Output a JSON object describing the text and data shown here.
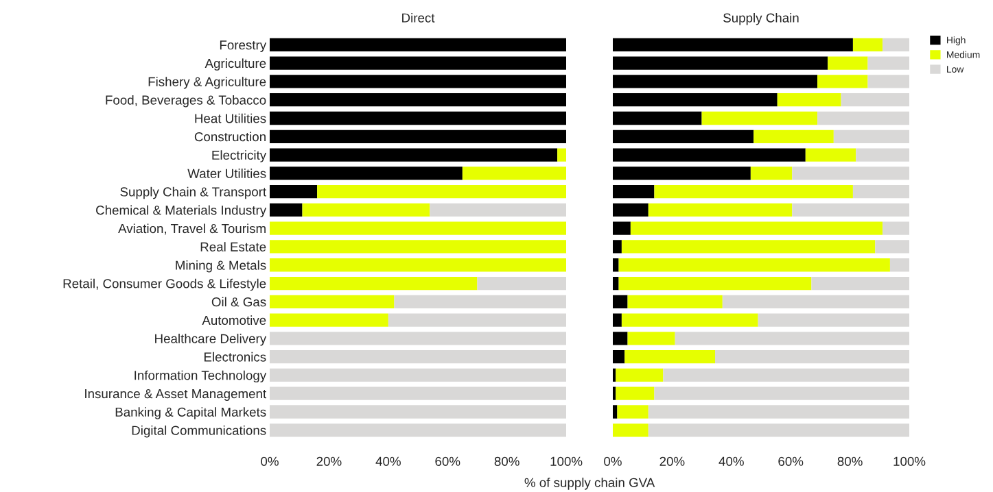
{
  "chart_data": [
    {
      "type": "bar",
      "orientation": "horizontal",
      "stacked": true,
      "title": "Direct",
      "xlabel": "% of supply chain GVA",
      "categories": [
        "Forestry",
        "Agriculture",
        "Fishery & Agriculture",
        "Food, Beverages & Tobacco",
        "Heat Utilities",
        "Construction",
        "Electricity",
        "Water Utilities",
        "Supply Chain & Transport",
        "Chemical & Materials Industry",
        "Aviation, Travel & Tourism",
        "Real Estate",
        "Mining & Metals",
        "Retail, Consumer Goods & Lifestyle",
        "Oil & Gas",
        "Automotive",
        "Healthcare Delivery",
        "Electronics",
        "Information Technology",
        "Insurance & Asset Management",
        "Banking & Capital Markets",
        "Digital Communications"
      ],
      "series": [
        {
          "color": "#000000",
          "values": [
            100,
            100,
            100,
            100,
            100,
            100,
            97,
            65,
            16,
            11,
            0,
            0,
            0,
            0,
            0,
            0,
            0,
            0,
            0,
            0,
            0,
            0
          ]
        },
        {
          "color": "#e6ff00",
          "values": [
            0,
            0,
            0,
            0,
            0,
            0,
            3,
            35,
            84,
            43,
            100,
            100,
            100,
            70,
            42,
            40,
            0,
            0,
            0,
            0,
            0,
            0
          ]
        },
        {
          "color": "#d9d8d7",
          "values": [
            0,
            0,
            0,
            0,
            0,
            0,
            0,
            0,
            0,
            46,
            0,
            0,
            0,
            30,
            58,
            60,
            100,
            100,
            100,
            100,
            100,
            100
          ]
        }
      ],
      "xlim": [
        0,
        100
      ],
      "xticks": [
        {
          "value": 0,
          "label": "0%"
        },
        {
          "value": 20,
          "label": "20%"
        },
        {
          "value": 40,
          "label": "40%"
        },
        {
          "value": 60,
          "label": "60%"
        },
        {
          "value": 80,
          "label": "80%"
        },
        {
          "value": 100,
          "label": "100%"
        }
      ]
    },
    {
      "type": "bar",
      "orientation": "horizontal",
      "stacked": true,
      "title": "Supply Chain",
      "legend": "top right",
      "tick_labels": "x",
      "categories": [
        null,
        null,
        null,
        null,
        null,
        null,
        null,
        null,
        null,
        null,
        null,
        null,
        null,
        null,
        null,
        null,
        null,
        null,
        null,
        null,
        null,
        null
      ],
      "series": [
        {
          "name": "High",
          "color": "#000000",
          "values": [
            81,
            72.5,
            69,
            55.5,
            30,
            47.5,
            65,
            46.5,
            14,
            12,
            6,
            3,
            2,
            2,
            5,
            3,
            5,
            4,
            1,
            1,
            1.5,
            0
          ]
        },
        {
          "name": "Medium",
          "color": "#e6ff00",
          "values": [
            10,
            13.5,
            17,
            21.5,
            39,
            27,
            17,
            14,
            67,
            48.5,
            85,
            85.5,
            91.5,
            65,
            32,
            46,
            16,
            30.5,
            16,
            13,
            10.5,
            12
          ]
        },
        {
          "name": "Low",
          "color": "#d9d8d7",
          "values": [
            9,
            14,
            14,
            23,
            31,
            25.5,
            18,
            39.5,
            19,
            39.5,
            9,
            11.5,
            6.5,
            33,
            63,
            51,
            79,
            65.5,
            83,
            86,
            88,
            88
          ]
        }
      ],
      "xlim": [
        0,
        100
      ],
      "xticks": [
        {
          "value": 0,
          "label": "0%"
        },
        {
          "value": 20,
          "label": "20%"
        },
        {
          "value": 40,
          "label": "40%"
        },
        {
          "value": 60,
          "label": "60%"
        },
        {
          "value": 80,
          "label": "80%"
        },
        {
          "value": 100,
          "label": "100%"
        }
      ]
    }
  ]
}
